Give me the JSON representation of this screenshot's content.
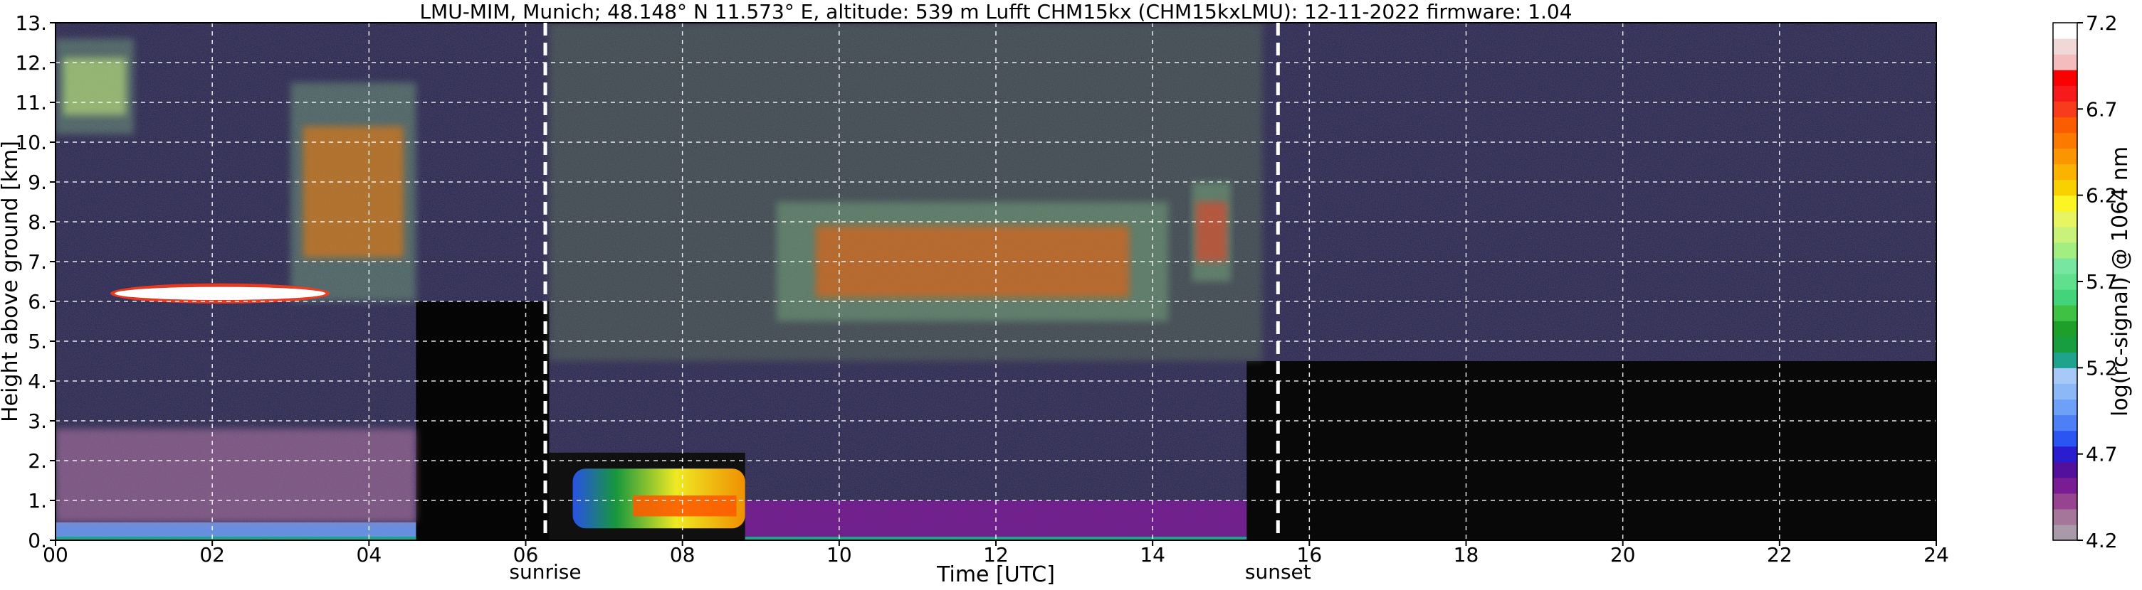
{
  "chart_data": {
    "type": "heatmap",
    "title": "LMU-MIM, Munich; 48.148° N 11.573° E, altitude: 539 m    Lufft CHM15kx (CHM15kxLMU): 12-11-2022    firmware: 1.04",
    "xlabel": "Time [UTC]",
    "ylabel": "Height above ground [km]",
    "xlim": [
      0,
      24
    ],
    "ylim": [
      0,
      13
    ],
    "x_ticks": [
      0,
      2,
      4,
      6,
      8,
      10,
      12,
      14,
      16,
      18,
      20,
      22,
      24
    ],
    "x_tick_labels": [
      "00",
      "02",
      "04",
      "06",
      "08",
      "10",
      "12",
      "14",
      "16",
      "18",
      "20",
      "22",
      "24"
    ],
    "y_ticks": [
      0,
      1,
      2,
      3,
      4,
      5,
      6,
      7,
      8,
      9,
      10,
      11,
      12,
      13
    ],
    "y_tick_labels": [
      "0.",
      "1.",
      "2.",
      "3.",
      "4.",
      "5.",
      "6.",
      "7.",
      "8.",
      "9.",
      "10.",
      "11.",
      "12.",
      "13."
    ],
    "grid": true,
    "events": [
      {
        "label": "sunrise",
        "x": 6.25
      },
      {
        "label": "sunset",
        "x": 15.6
      }
    ],
    "colorbar": {
      "label": "log(rc-signal) @ 1064 nm",
      "range": [
        4.2,
        7.2
      ],
      "ticks": [
        4.2,
        4.7,
        5.2,
        5.7,
        6.2,
        6.7,
        7.2
      ],
      "tick_labels": [
        "4.2",
        "4.7",
        "5.2",
        "5.7",
        "6.2",
        "6.7",
        "7.2"
      ],
      "colors": [
        "#a89aa8",
        "#a6769a",
        "#96448f",
        "#7a1d95",
        "#52109c",
        "#2a1ccf",
        "#2a55f2",
        "#4d80f7",
        "#6fa0f7",
        "#8cb8f7",
        "#a8c8f7",
        "#1fa38c",
        "#179e3f",
        "#1e9f2a",
        "#3fc244",
        "#43d47a",
        "#5fe08c",
        "#77e6a0",
        "#a3ee80",
        "#c8f27a",
        "#e6f560",
        "#fbf524",
        "#fad100",
        "#fbb300",
        "#fb9600",
        "#fc7a00",
        "#fc5c00",
        "#f73b1b",
        "#f61a1a",
        "#fa0000",
        "#f4bcbc",
        "#f0d8d8",
        "#ffffff"
      ]
    },
    "features": [
      {
        "type": "cirrus",
        "x": [
          0.0,
          1.0
        ],
        "y": [
          10.2,
          12.6
        ],
        "level": 6.0
      },
      {
        "type": "cirrus",
        "x": [
          3.0,
          4.6
        ],
        "y": [
          6.0,
          11.5
        ],
        "level": 6.5
      },
      {
        "type": "cloud_layer",
        "x": [
          0.7,
          3.5
        ],
        "y": [
          6.0,
          6.4
        ],
        "level": 7.2
      },
      {
        "type": "boundary_layer",
        "x": [
          0.0,
          4.6
        ],
        "y": [
          0.0,
          0.45
        ],
        "level": 5.0
      },
      {
        "type": "aerosol_haze",
        "x": [
          0.0,
          4.6
        ],
        "y": [
          0.45,
          2.8
        ],
        "level": 4.5
      },
      {
        "type": "fog_layer",
        "x": [
          6.6,
          8.8
        ],
        "y": [
          0.3,
          1.8
        ],
        "level": 6.3
      },
      {
        "type": "cirrus",
        "x": [
          9.2,
          14.2
        ],
        "y": [
          5.5,
          8.5
        ],
        "level": 6.6
      },
      {
        "type": "cirrus",
        "x": [
          14.5,
          15.0
        ],
        "y": [
          6.5,
          9.0
        ],
        "level": 6.7
      },
      {
        "type": "boundary_layer",
        "x": [
          8.8,
          15.2
        ],
        "y": [
          0.0,
          1.0
        ],
        "level": 4.5
      }
    ]
  }
}
